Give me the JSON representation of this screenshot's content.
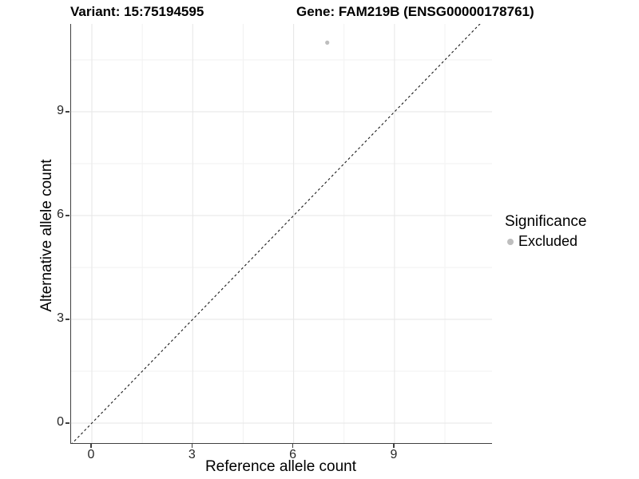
{
  "chart_data": {
    "type": "scatter",
    "title_left": "Variant: 15:75194595",
    "title_right": "Gene: FAM219B (ENSG00000178761)",
    "xlabel": "Reference allele count",
    "ylabel": "Alternative allele count",
    "xlim": [
      -0.62,
      11.93
    ],
    "ylim": [
      -0.58,
      11.55
    ],
    "x_ticks": [
      0,
      3,
      6,
      9
    ],
    "y_ticks": [
      0,
      3,
      6,
      9
    ],
    "x_minor_ticks": [
      1.5,
      4.5,
      7.5,
      10.5
    ],
    "y_minor_ticks": [
      1.5,
      4.5,
      7.5,
      10.5
    ],
    "grid": "major and minor gridlines on white panel",
    "points": [
      {
        "x": 7,
        "y": 11,
        "series": "Excluded"
      }
    ],
    "reference_line": {
      "slope": 1,
      "intercept": 0,
      "style": "dashed"
    },
    "legend": {
      "title": "Significance",
      "position": "right",
      "items": [
        {
          "label": "Excluded",
          "color": "#bebebe"
        }
      ]
    },
    "colors": {
      "point": "#bebebe",
      "grid_major": "#e6e6e6",
      "grid_minor": "#f2f2f2",
      "axis_line": "#404040",
      "tick_text": "#262626",
      "title_text": "#000000",
      "dashed_line": "#1a1a1a",
      "background": "#ffffff"
    }
  }
}
